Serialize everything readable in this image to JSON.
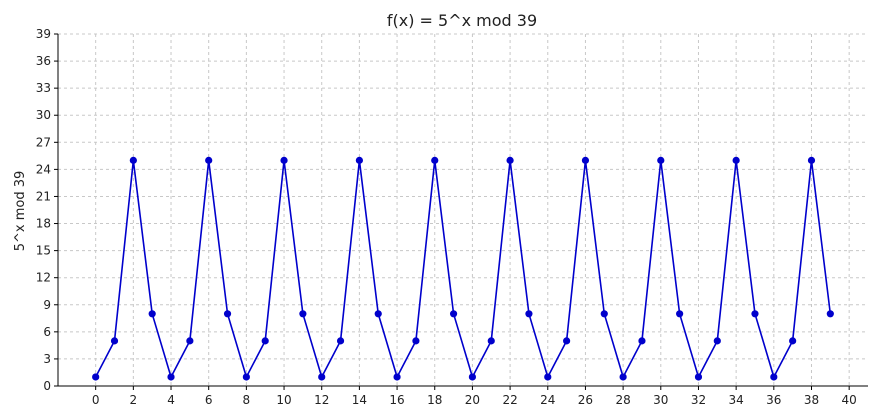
{
  "chart_data": {
    "type": "line",
    "title": "f(x) = 5^x mod 39",
    "xlabel": "",
    "ylabel": "5^x mod 39",
    "xlim": [
      -2,
      41
    ],
    "ylim": [
      0,
      39
    ],
    "xticks": [
      0,
      2,
      4,
      6,
      8,
      10,
      12,
      14,
      16,
      18,
      20,
      22,
      24,
      26,
      28,
      30,
      32,
      34,
      36,
      38,
      40
    ],
    "yticks": [
      0,
      3,
      6,
      9,
      12,
      15,
      18,
      21,
      24,
      27,
      30,
      33,
      36,
      39
    ],
    "grid": true,
    "series": [
      {
        "color": "#0000cc",
        "marker": "circle",
        "x": [
          0,
          1,
          2,
          3,
          4,
          5,
          6,
          7,
          8,
          9,
          10,
          11,
          12,
          13,
          14,
          15,
          16,
          17,
          18,
          19,
          20,
          21,
          22,
          23,
          24,
          25,
          26,
          27,
          28,
          29,
          30,
          31,
          32,
          33,
          34,
          35,
          36,
          37,
          38,
          39
        ],
        "y": [
          1,
          5,
          25,
          8,
          1,
          5,
          25,
          8,
          1,
          5,
          25,
          8,
          1,
          5,
          25,
          8,
          1,
          5,
          25,
          8,
          1,
          5,
          25,
          8,
          1,
          5,
          25,
          8,
          1,
          5,
          25,
          8,
          1,
          5,
          25,
          8,
          1,
          5,
          25,
          8
        ]
      }
    ]
  }
}
